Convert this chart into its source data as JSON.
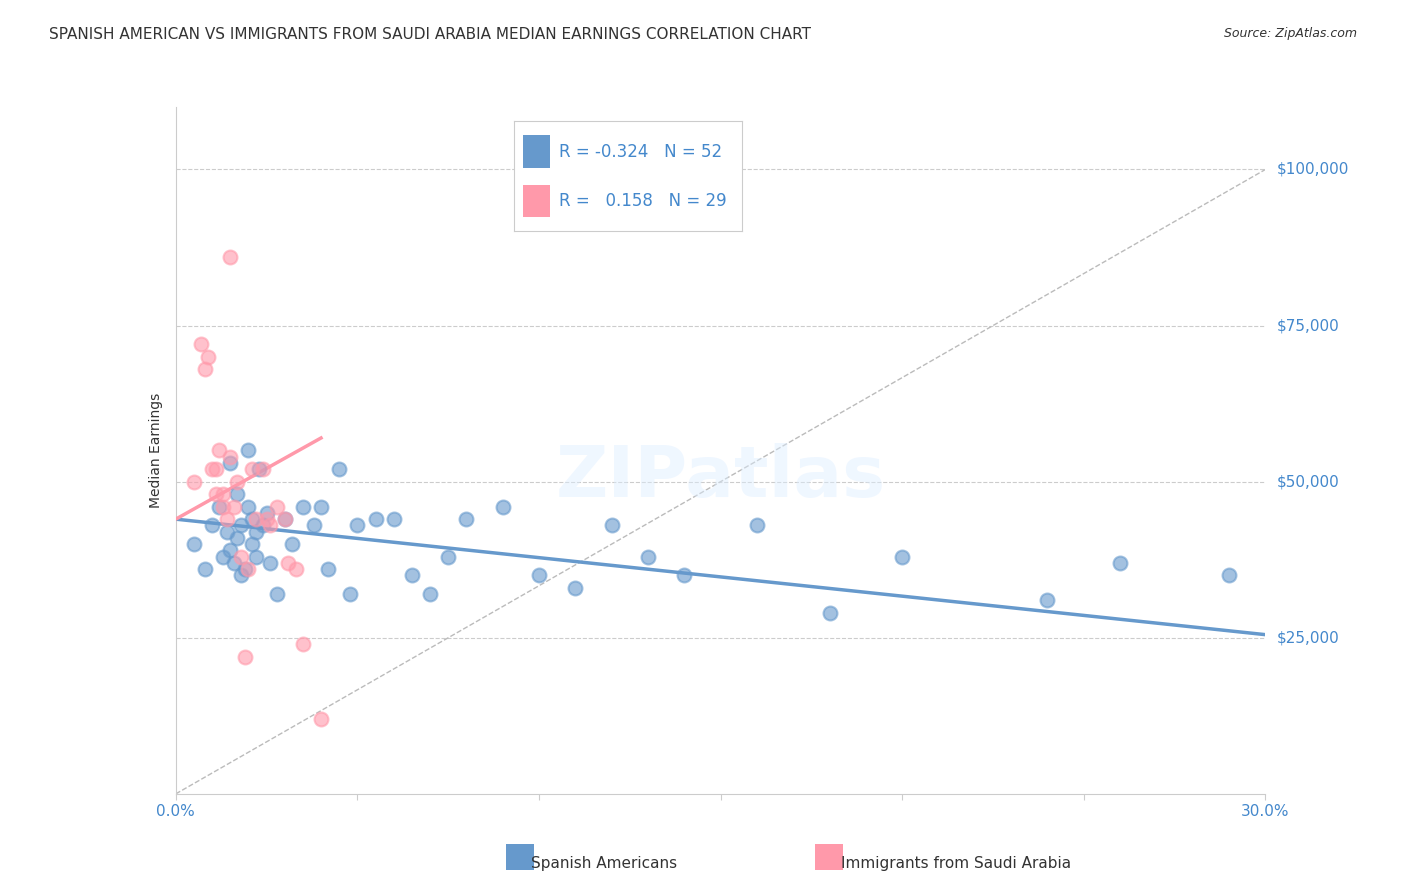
{
  "title": "SPANISH AMERICAN VS IMMIGRANTS FROM SAUDI ARABIA MEDIAN EARNINGS CORRELATION CHART",
  "source": "Source: ZipAtlas.com",
  "ylabel": "Median Earnings",
  "watermark": "ZIPatlas",
  "ylim": [
    0,
    110000
  ],
  "xlim": [
    0,
    0.3
  ],
  "yticks": [
    25000,
    50000,
    75000,
    100000
  ],
  "ytick_labels": [
    "$25,000",
    "$50,000",
    "$75,000",
    "$100,000"
  ],
  "xticks": [
    0.0,
    0.05,
    0.1,
    0.15,
    0.2,
    0.25,
    0.3
  ],
  "xtick_labels": [
    "0.0%",
    "",
    "",
    "",
    "",
    "",
    "30.0%"
  ],
  "blue_color": "#6699CC",
  "pink_color": "#FF99AA",
  "legend_r_blue": "-0.324",
  "legend_n_blue": "52",
  "legend_r_pink": "0.158",
  "legend_n_pink": "29",
  "label_blue": "Spanish Americans",
  "label_pink": "Immigrants from Saudi Arabia",
  "title_color": "#333333",
  "axis_color": "#4488CC",
  "grid_color": "#CCCCCC",
  "blue_scatter_x": [
    0.005,
    0.008,
    0.01,
    0.012,
    0.013,
    0.014,
    0.015,
    0.015,
    0.016,
    0.017,
    0.017,
    0.018,
    0.018,
    0.019,
    0.02,
    0.02,
    0.021,
    0.021,
    0.022,
    0.022,
    0.023,
    0.024,
    0.025,
    0.026,
    0.028,
    0.03,
    0.032,
    0.035,
    0.038,
    0.04,
    0.042,
    0.045,
    0.048,
    0.05,
    0.055,
    0.06,
    0.065,
    0.07,
    0.075,
    0.08,
    0.09,
    0.1,
    0.11,
    0.12,
    0.13,
    0.14,
    0.16,
    0.18,
    0.2,
    0.24,
    0.26,
    0.29
  ],
  "blue_scatter_y": [
    40000,
    36000,
    43000,
    46000,
    38000,
    42000,
    53000,
    39000,
    37000,
    41000,
    48000,
    35000,
    43000,
    36000,
    55000,
    46000,
    44000,
    40000,
    42000,
    38000,
    52000,
    43000,
    45000,
    37000,
    32000,
    44000,
    40000,
    46000,
    43000,
    46000,
    36000,
    52000,
    32000,
    43000,
    44000,
    44000,
    35000,
    32000,
    38000,
    44000,
    46000,
    35000,
    33000,
    43000,
    38000,
    35000,
    43000,
    29000,
    38000,
    31000,
    37000,
    35000
  ],
  "pink_scatter_x": [
    0.005,
    0.007,
    0.008,
    0.009,
    0.01,
    0.011,
    0.011,
    0.012,
    0.013,
    0.013,
    0.014,
    0.015,
    0.015,
    0.016,
    0.017,
    0.018,
    0.019,
    0.02,
    0.021,
    0.022,
    0.024,
    0.025,
    0.026,
    0.028,
    0.03,
    0.031,
    0.033,
    0.035,
    0.04
  ],
  "pink_scatter_y": [
    50000,
    72000,
    68000,
    70000,
    52000,
    52000,
    48000,
    55000,
    48000,
    46000,
    44000,
    86000,
    54000,
    46000,
    50000,
    38000,
    22000,
    36000,
    52000,
    44000,
    52000,
    44000,
    43000,
    46000,
    44000,
    37000,
    36000,
    24000,
    12000
  ],
  "blue_line_x": [
    0.0,
    0.3
  ],
  "blue_line_y": [
    44000,
    25500
  ],
  "pink_line_x": [
    0.0,
    0.04
  ],
  "pink_line_y": [
    44000,
    57000
  ],
  "diag_line_x": [
    0.0,
    0.3
  ],
  "diag_line_y": [
    0,
    100000
  ],
  "background_color": "#FFFFFF",
  "title_fontsize": 11,
  "source_fontsize": 9,
  "axis_label_fontsize": 10,
  "tick_fontsize": 11,
  "legend_fontsize": 12,
  "watermark_fontsize": 52,
  "watermark_color": "#DDEEFF",
  "watermark_alpha": 0.45
}
